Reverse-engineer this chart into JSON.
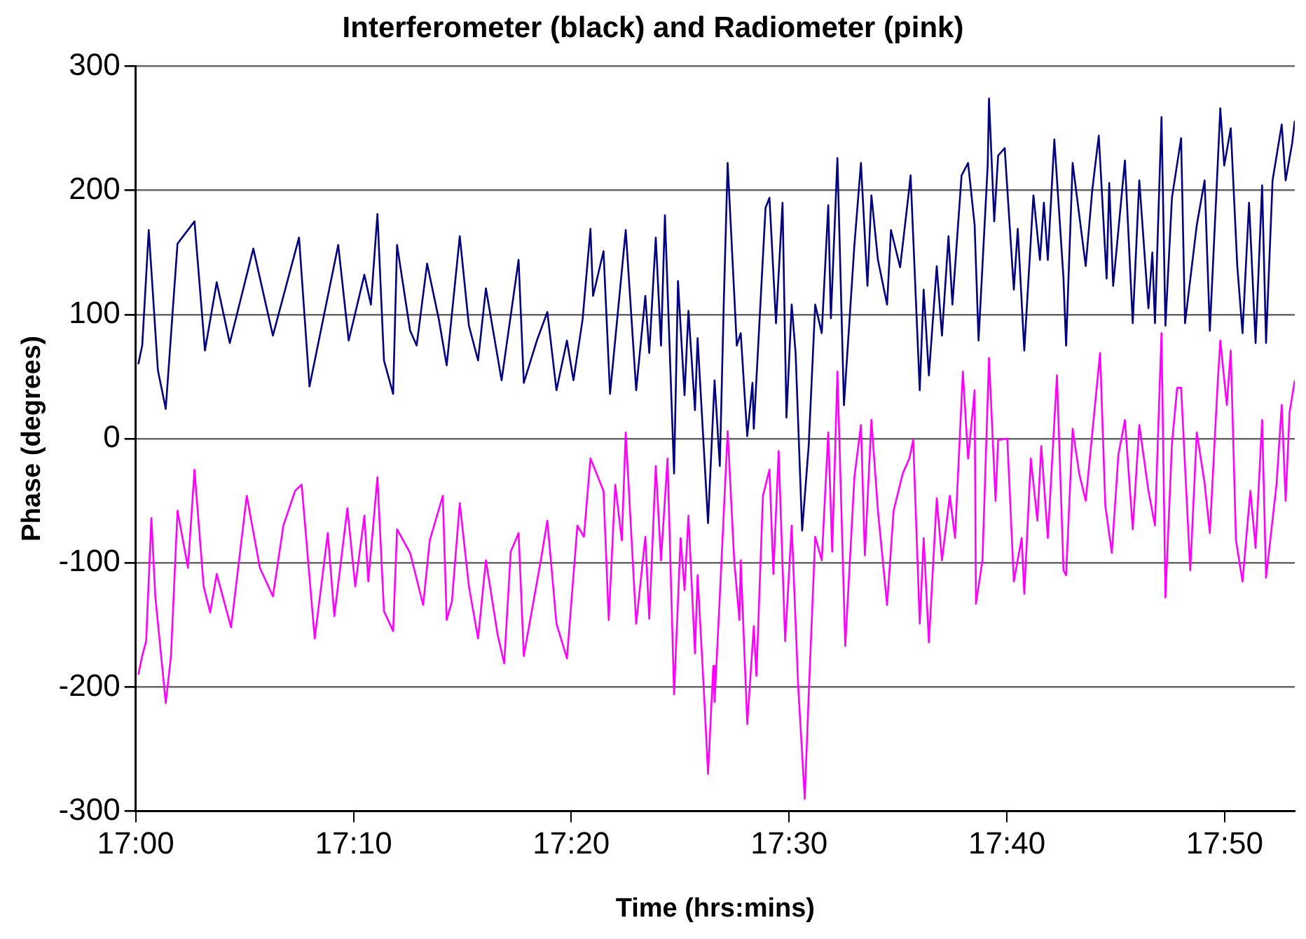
{
  "chart_data": {
    "type": "line",
    "title": "Interferometer (black) and Radiometer (pink)",
    "xlabel": "Time (hrs:mins)",
    "ylabel": "Phase (degrees)",
    "xlim": [
      17,
      17.887
    ],
    "xticks": [
      {
        "value": 17,
        "label": "17:00"
      },
      {
        "value": 17.1667,
        "label": "17:10"
      },
      {
        "value": 17.3333,
        "label": "17:20"
      },
      {
        "value": 17.5,
        "label": "17:30"
      },
      {
        "value": 17.6667,
        "label": "17:40"
      },
      {
        "value": 17.8333,
        "label": "17:50"
      }
    ],
    "ylim": [
      -300,
      300
    ],
    "yticks": [
      -300,
      -200,
      -100,
      0,
      100,
      200,
      300
    ],
    "grid": "y",
    "legend": false,
    "marker": "none",
    "line_style": "solid",
    "series": [
      {
        "color": "#000080",
        "x": [
          17.002,
          17.005,
          17.01,
          17.017,
          17.023,
          17.032,
          17.045,
          17.053,
          17.062,
          17.072,
          17.09,
          17.105,
          17.125,
          17.133,
          17.155,
          17.163,
          17.175,
          17.18,
          17.185,
          17.19,
          17.197,
          17.2,
          17.21,
          17.215,
          17.223,
          17.232,
          17.238,
          17.248,
          17.255,
          17.262,
          17.268,
          17.28,
          17.293,
          17.297,
          17.307,
          17.315,
          17.322,
          17.33,
          17.335,
          17.342,
          17.348,
          17.35,
          17.358,
          17.363,
          17.375,
          17.383,
          17.39,
          17.393,
          17.398,
          17.402,
          17.405,
          17.412,
          17.415,
          17.42,
          17.423,
          17.428,
          17.43,
          17.438,
          17.443,
          17.447,
          17.45,
          17.453,
          17.46,
          17.463,
          17.468,
          17.472,
          17.473,
          17.482,
          17.485,
          17.49,
          17.495,
          17.498,
          17.502,
          17.505,
          17.51,
          17.515,
          17.52,
          17.525,
          17.53,
          17.532,
          17.537,
          17.542,
          17.55,
          17.555,
          17.56,
          17.563,
          17.568,
          17.575,
          17.578,
          17.585,
          17.592,
          17.593,
          17.6,
          17.603,
          17.607,
          17.613,
          17.617,
          17.622,
          17.625,
          17.632,
          17.637,
          17.642,
          17.645,
          17.652,
          17.653,
          17.657,
          17.66,
          17.665,
          17.672,
          17.675,
          17.68,
          17.687,
          17.692,
          17.695,
          17.698,
          17.703,
          17.71,
          17.712,
          17.717,
          17.727,
          17.732,
          17.737,
          17.743,
          17.745,
          17.748,
          17.757,
          17.763,
          17.768,
          17.775,
          17.778,
          17.78,
          17.785,
          17.788,
          17.793,
          17.8,
          17.803,
          17.812,
          17.818,
          17.822,
          17.827,
          17.83,
          17.833,
          17.838,
          17.843,
          17.847,
          17.852,
          17.857,
          17.862,
          17.865,
          17.87,
          17.877,
          17.88,
          17.885,
          17.887
        ],
        "values": [
          60,
          75,
          168,
          55,
          24,
          157,
          175,
          71,
          126,
          77,
          153,
          83,
          162,
          42,
          156,
          79,
          132,
          108,
          181,
          63,
          36,
          156,
          87,
          75,
          141,
          96,
          59,
          163,
          91,
          63,
          121,
          47,
          144,
          45,
          79,
          102,
          39,
          79,
          47,
          96,
          169,
          115,
          151,
          36,
          168,
          39,
          115,
          69,
          162,
          75,
          180,
          -28,
          127,
          35,
          103,
          23,
          81,
          -68,
          47,
          -22,
          108,
          222,
          75,
          85,
          2,
          45,
          8,
          186,
          194,
          93,
          190,
          17,
          108,
          69,
          -74,
          -6,
          108,
          85,
          188,
          97,
          226,
          27,
          156,
          222,
          123,
          196,
          144,
          108,
          168,
          138,
          202,
          212,
          39,
          120,
          51,
          139,
          83,
          163,
          108,
          212,
          222,
          172,
          79,
          220,
          274,
          175,
          228,
          234,
          120,
          169,
          71,
          196,
          144,
          190,
          144,
          241,
          129,
          75,
          222,
          139,
          200,
          244,
          129,
          206,
          123,
          224,
          93,
          208,
          105,
          150,
          93,
          259,
          91,
          194,
          242,
          93,
          172,
          208,
          87,
          198,
          266,
          220,
          250,
          139,
          85,
          190,
          77,
          204,
          77,
          208,
          253,
          208,
          238,
          256
        ]
      },
      {
        "color": "#ff00ff",
        "x": [
          17.002,
          17.005,
          17.008,
          17.012,
          17.015,
          17.023,
          17.027,
          17.032,
          17.04,
          17.045,
          17.052,
          17.057,
          17.062,
          17.073,
          17.085,
          17.095,
          17.105,
          17.113,
          17.122,
          17.127,
          17.137,
          17.147,
          17.152,
          17.162,
          17.168,
          17.175,
          17.178,
          17.185,
          17.19,
          17.197,
          17.2,
          17.21,
          17.22,
          17.225,
          17.235,
          17.238,
          17.242,
          17.248,
          17.255,
          17.262,
          17.268,
          17.277,
          17.282,
          17.287,
          17.293,
          17.297,
          17.31,
          17.315,
          17.322,
          17.33,
          17.338,
          17.343,
          17.348,
          17.358,
          17.362,
          17.367,
          17.372,
          17.375,
          17.383,
          17.39,
          17.393,
          17.398,
          17.402,
          17.407,
          17.412,
          17.417,
          17.42,
          17.423,
          17.428,
          17.43,
          17.435,
          17.438,
          17.442,
          17.443,
          17.447,
          17.453,
          17.458,
          17.462,
          17.463,
          17.468,
          17.473,
          17.475,
          17.48,
          17.485,
          17.488,
          17.492,
          17.497,
          17.502,
          17.507,
          17.512,
          17.515,
          17.52,
          17.525,
          17.53,
          17.533,
          17.537,
          17.543,
          17.55,
          17.555,
          17.558,
          17.563,
          17.568,
          17.575,
          17.58,
          17.587,
          17.592,
          17.595,
          17.6,
          17.603,
          17.607,
          17.613,
          17.617,
          17.623,
          17.627,
          17.633,
          17.637,
          17.642,
          17.643,
          17.648,
          17.653,
          17.658,
          17.66,
          17.667,
          17.672,
          17.678,
          17.68,
          17.685,
          17.69,
          17.693,
          17.698,
          17.705,
          17.71,
          17.712,
          17.717,
          17.722,
          17.727,
          17.738,
          17.742,
          17.747,
          17.752,
          17.757,
          17.763,
          17.768,
          17.775,
          17.78,
          17.785,
          17.788,
          17.793,
          17.797,
          17.8,
          17.807,
          17.812,
          17.818,
          17.822,
          17.828,
          17.83,
          17.835,
          17.838,
          17.842,
          17.847,
          17.853,
          17.857,
          17.862,
          17.865,
          17.873,
          17.877,
          17.88,
          17.883,
          17.887
        ],
        "values": [
          -190,
          -175,
          -163,
          -64,
          -127,
          -213,
          -175,
          -58,
          -104,
          -25,
          -119,
          -140,
          -109,
          -152,
          -46,
          -104,
          -127,
          -70,
          -42,
          -37,
          -161,
          -76,
          -143,
          -56,
          -119,
          -62,
          -115,
          -31,
          -139,
          -155,
          -73,
          -92,
          -134,
          -82,
          -46,
          -146,
          -131,
          -52,
          -119,
          -161,
          -98,
          -158,
          -181,
          -91,
          -76,
          -175,
          -98,
          -66,
          -149,
          -177,
          -70,
          -79,
          -16,
          -42,
          -146,
          -37,
          -82,
          5,
          -149,
          -79,
          -145,
          -22,
          -98,
          -16,
          -206,
          -80,
          -122,
          -62,
          -173,
          -110,
          -207,
          -270,
          -183,
          -212,
          -127,
          6,
          -98,
          -146,
          -98,
          -230,
          -151,
          -191,
          -46,
          -25,
          -109,
          -10,
          -163,
          -70,
          -200,
          -290,
          -207,
          -79,
          -98,
          5,
          -91,
          54,
          -167,
          -31,
          11,
          -94,
          15,
          -58,
          -134,
          -58,
          -28,
          -16,
          -1,
          -149,
          -80,
          -164,
          -48,
          -98,
          -46,
          -80,
          54,
          -16,
          39,
          -133,
          -98,
          65,
          -50,
          -1,
          0,
          -115,
          -80,
          -125,
          -16,
          -66,
          -6,
          -80,
          51,
          -106,
          -110,
          8,
          -28,
          -50,
          69,
          -54,
          -92,
          -13,
          15,
          -73,
          11,
          -42,
          -70,
          85,
          -128,
          -4,
          41,
          41,
          -106,
          5,
          -36,
          -76,
          45,
          79,
          27,
          71,
          -82,
          -115,
          -42,
          -88,
          15,
          -112,
          -37,
          27,
          -50,
          21,
          47
        ]
      }
    ]
  }
}
